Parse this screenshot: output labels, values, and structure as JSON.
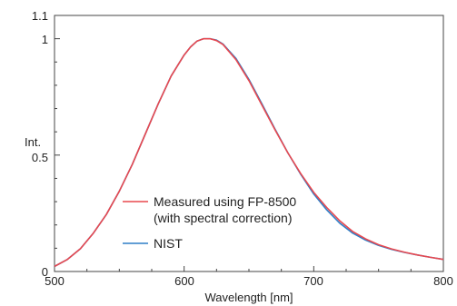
{
  "chart_data": {
    "type": "line",
    "title": "",
    "xlabel": "Wavelength [nm]",
    "ylabel": "Int.",
    "xlim": [
      500,
      800
    ],
    "ylim": [
      0,
      1.1
    ],
    "x_ticks": [
      "500",
      "600",
      "700",
      "800"
    ],
    "y_ticks": [
      "0",
      "0.5",
      "1",
      "1.1"
    ],
    "grid": false,
    "legend_position": "lower-left",
    "series": [
      {
        "name": "Measured using FP-8500",
        "name_line2": "(with spectral correction)",
        "color": "#e8484f",
        "x": [
          500,
          510,
          520,
          530,
          540,
          550,
          560,
          570,
          580,
          590,
          600,
          605,
          610,
          615,
          620,
          625,
          630,
          640,
          650,
          660,
          670,
          680,
          690,
          700,
          710,
          720,
          730,
          740,
          750,
          760,
          770,
          780,
          790,
          800
        ],
        "y": [
          0.022,
          0.052,
          0.098,
          0.165,
          0.245,
          0.345,
          0.46,
          0.59,
          0.72,
          0.84,
          0.93,
          0.965,
          0.99,
          1.0,
          1.0,
          0.992,
          0.975,
          0.91,
          0.82,
          0.715,
          0.61,
          0.51,
          0.42,
          0.34,
          0.275,
          0.218,
          0.172,
          0.14,
          0.115,
          0.097,
          0.083,
          0.071,
          0.061,
          0.052
        ]
      },
      {
        "name": "NIST",
        "color": "#2f7fc7",
        "x": [
          500,
          510,
          520,
          530,
          540,
          550,
          560,
          570,
          580,
          590,
          600,
          605,
          610,
          615,
          620,
          625,
          630,
          640,
          650,
          660,
          670,
          680,
          690,
          700,
          710,
          720,
          730,
          740,
          750,
          760,
          770,
          780,
          790,
          800
        ],
        "y": [
          0.022,
          0.052,
          0.098,
          0.165,
          0.245,
          0.345,
          0.46,
          0.59,
          0.72,
          0.84,
          0.93,
          0.965,
          0.99,
          1.0,
          1.0,
          0.994,
          0.977,
          0.915,
          0.825,
          0.72,
          0.613,
          0.51,
          0.417,
          0.333,
          0.265,
          0.208,
          0.165,
          0.135,
          0.112,
          0.095,
          0.082,
          0.071,
          0.061,
          0.052
        ]
      }
    ]
  }
}
